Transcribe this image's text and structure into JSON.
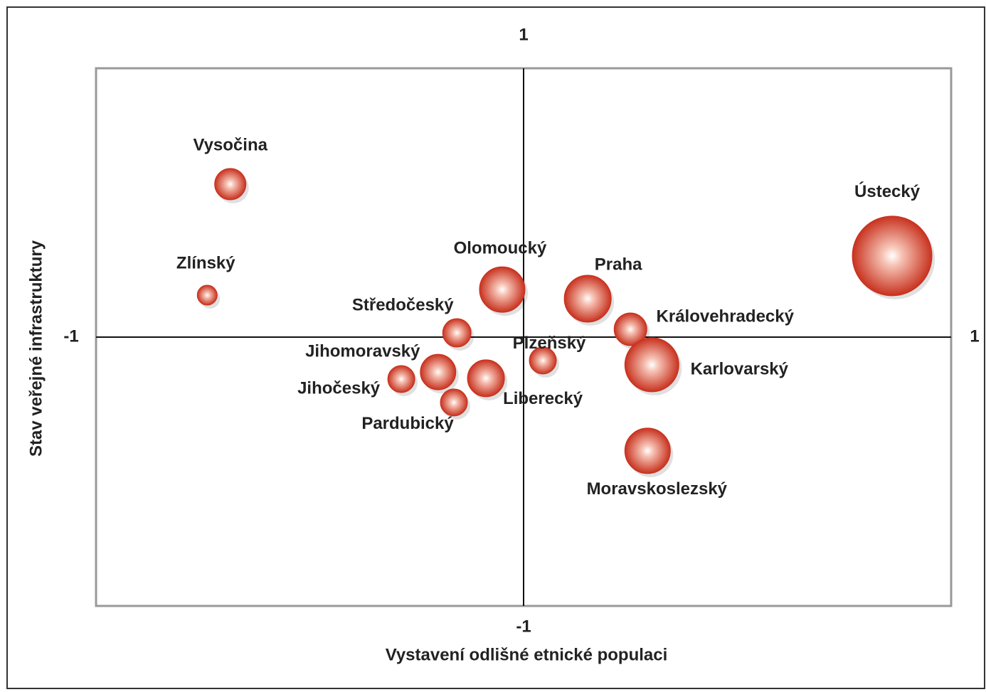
{
  "chart_data": {
    "type": "bubble",
    "xlabel": "Vystavení odlišné etnické populaci",
    "ylabel": "Stav veřejné infrastruktury",
    "categories": [
      "Vysočina",
      "Zlínský",
      "Olomoucký",
      "Praha",
      "Středočeský",
      "Královehradecký",
      "Plzeňský",
      "Karlovarský",
      "Jihomoravský",
      "Jihočeský",
      "Liberecký",
      "Pardubický",
      "Moravskoslezský",
      "Ústecký"
    ],
    "x": [
      -0.686,
      -0.74,
      -0.05,
      0.15,
      -0.156,
      0.25,
      0.045,
      0.3,
      -0.2,
      -0.286,
      -0.088,
      -0.163,
      0.29,
      0.862
    ],
    "values": [
      0.569,
      0.156,
      0.177,
      0.143,
      0.016,
      0.029,
      -0.087,
      -0.103,
      -0.13,
      -0.156,
      -0.153,
      -0.243,
      -0.423,
      0.302
    ],
    "sizes": [
      22,
      14,
      32,
      33,
      20,
      23,
      19,
      38,
      25,
      19,
      26,
      19,
      32,
      56
    ],
    "color": "#c8321f",
    "xlim": [
      -1,
      1
    ],
    "xticks": [
      -1,
      1
    ],
    "ylim": [
      -1,
      1
    ],
    "yticks": [
      -1,
      1
    ]
  }
}
